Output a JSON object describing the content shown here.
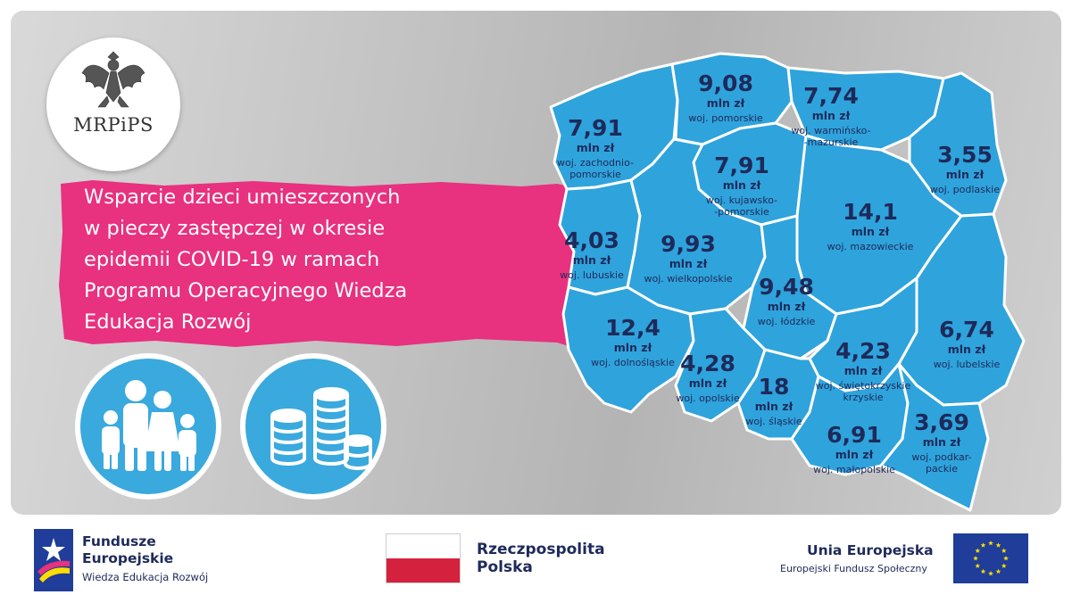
{
  "logo": {
    "text": "MRPiPS"
  },
  "headline": {
    "lines": [
      "Wsparcie dzieci umieszczonych",
      "w pieczy zastępczej w okresie",
      "epidemii  COVID-19 w ramach",
      "Programu Operacyjnego Wiedza",
      "Edukacja Rozwój"
    ]
  },
  "map": {
    "region_color": "#2fa3dc",
    "border_color": "#ffffff",
    "text_color": "#1e2a5a",
    "regions": [
      {
        "value": "7,91",
        "unit": "mln zł",
        "name": [
          "woj. zachodnio-",
          "pomorskie"
        ]
      },
      {
        "value": "9,08",
        "unit": "mln zł",
        "name": [
          "woj. pomorskie"
        ]
      },
      {
        "value": "7,74",
        "unit": "mln zł",
        "name": [
          "woj. warmińsko-",
          "-mazurskie"
        ]
      },
      {
        "value": "7,91",
        "unit": "mln zł",
        "name": [
          "woj. kujawsko-",
          "-pomorskie"
        ]
      },
      {
        "value": "3,55",
        "unit": "mln zł",
        "name": [
          "woj. podlaskie"
        ]
      },
      {
        "value": "14,1",
        "unit": "mln zł",
        "name": [
          "woj. mazowieckie"
        ]
      },
      {
        "value": "4,03",
        "unit": "mln zł",
        "name": [
          "woj. lubuskie"
        ]
      },
      {
        "value": "9,93",
        "unit": "mln zł",
        "name": [
          "woj. wielkopolskie"
        ]
      },
      {
        "value": "9,48",
        "unit": "mln zł",
        "name": [
          "woj. łódzkie"
        ]
      },
      {
        "value": "12,4",
        "unit": "mln zł",
        "name": [
          "woj. dolnośląskie"
        ]
      },
      {
        "value": "6,74",
        "unit": "mln zł",
        "name": [
          "woj. lubelskie"
        ]
      },
      {
        "value": "4,28",
        "unit": "mln zł",
        "name": [
          "woj. opolskie"
        ]
      },
      {
        "value": "4,23",
        "unit": "mln zł",
        "name": [
          "woj. świętokrzyskie",
          "krzyskie"
        ]
      },
      {
        "value": "18",
        "unit": "mln zł",
        "name": [
          "woj. śląskie"
        ]
      },
      {
        "value": "6,91",
        "unit": "mln zł",
        "name": [
          "woj. małopolskie"
        ]
      },
      {
        "value": "3,69",
        "unit": "mln zł",
        "name": [
          "woj. podkar-",
          "packie"
        ]
      }
    ]
  },
  "footer": {
    "fe_title_1": "Fundusze",
    "fe_title_2": "Europejskie",
    "fe_sub": "Wiedza Edukacja Rozwój",
    "rp_title_1": "Rzeczpospolita",
    "rp_title_2": "Polska",
    "ue_title": "Unia Europejska",
    "ue_sub": "Europejski Fundusz Społeczny"
  },
  "colors": {
    "banner": "#e8317f",
    "icon_circle": "#3aa9dd",
    "flag_red": "#d4213d",
    "eu_blue": "#1f3d99",
    "eu_star": "#ffdd00"
  }
}
